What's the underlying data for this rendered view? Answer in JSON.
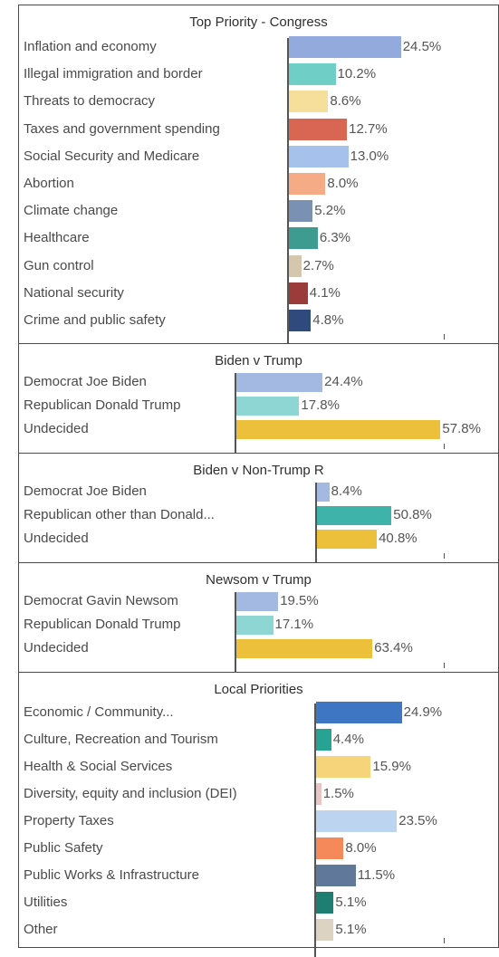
{
  "chart_data": [
    {
      "type": "bar",
      "orientation": "horizontal",
      "title": "Top Priority - Congress",
      "categories": [
        "Inflation and economy",
        "Illegal immigration and border",
        "Threats to democracy",
        "Taxes and government spending",
        "Social Security and Medicare",
        "Abortion",
        "Climate change",
        "Healthcare",
        "Gun control",
        "National security",
        "Crime and public safety"
      ],
      "values": [
        24.5,
        10.2,
        8.6,
        12.7,
        13.0,
        8.0,
        5.2,
        6.3,
        2.7,
        4.1,
        4.8
      ],
      "labels": [
        "24.5%",
        "10.2%",
        "8.6%",
        "12.7%",
        "13.0%",
        "8.0%",
        "5.2%",
        "6.3%",
        "2.7%",
        "4.1%",
        "4.8%"
      ],
      "colors": [
        "#92aadc",
        "#6fcfc6",
        "#f5df9b",
        "#d96553",
        "#a6c2ec",
        "#f5ab86",
        "#7a91b3",
        "#3e9b90",
        "#d5c6ae",
        "#9c3c3a",
        "#2f4a7c"
      ]
    },
    {
      "type": "bar",
      "orientation": "horizontal",
      "title": "Biden v Trump",
      "categories": [
        "Democrat Joe Biden",
        "Republican Donald Trump",
        "Undecided"
      ],
      "values": [
        24.4,
        17.8,
        57.8
      ],
      "labels": [
        "24.4%",
        "17.8%",
        "57.8%"
      ],
      "colors": [
        "#a4b9e2",
        "#8dd6d3",
        "#ecc03a"
      ]
    },
    {
      "type": "bar",
      "orientation": "horizontal",
      "title": "Biden v Non-Trump R",
      "categories": [
        "Democrat Joe Biden",
        "Republican other than Donald...",
        "Undecided"
      ],
      "values": [
        8.4,
        50.8,
        40.8
      ],
      "labels": [
        "8.4%",
        "50.8%",
        "40.8%"
      ],
      "colors": [
        "#a4b9e2",
        "#3eb3a9",
        "#ecc03a"
      ]
    },
    {
      "type": "bar",
      "orientation": "horizontal",
      "title": "Newsom v Trump",
      "categories": [
        "Democrat Gavin Newsom",
        "Republican Donald Trump",
        "Undecided"
      ],
      "values": [
        19.5,
        17.1,
        63.4
      ],
      "labels": [
        "19.5%",
        "17.1%",
        "63.4%"
      ],
      "colors": [
        "#a4b9e2",
        "#8dd6d3",
        "#ecc03a"
      ]
    },
    {
      "type": "bar",
      "orientation": "horizontal",
      "title": "Local Priorities",
      "categories": [
        "Economic / Community...",
        "Culture, Recreation and Tourism",
        "Health & Social Services",
        "Diversity, equity and inclusion (DEI)",
        "Property Taxes",
        "Public Safety",
        "Public Works & Infrastructure",
        "Utilities",
        "Other"
      ],
      "values": [
        24.9,
        4.4,
        15.9,
        1.5,
        23.5,
        8.0,
        11.5,
        5.1,
        5.1
      ],
      "labels": [
        "24.9%",
        "4.4%",
        "15.9%",
        "1.5%",
        "23.5%",
        "8.0%",
        "11.5%",
        "5.1%",
        "5.1%"
      ],
      "colors": [
        "#3f76c4",
        "#27a394",
        "#f5d47a",
        "#ebc4c4",
        "#bcd4f0",
        "#f5895a",
        "#60799a",
        "#1e7e72",
        "#ddd3c2"
      ]
    }
  ]
}
